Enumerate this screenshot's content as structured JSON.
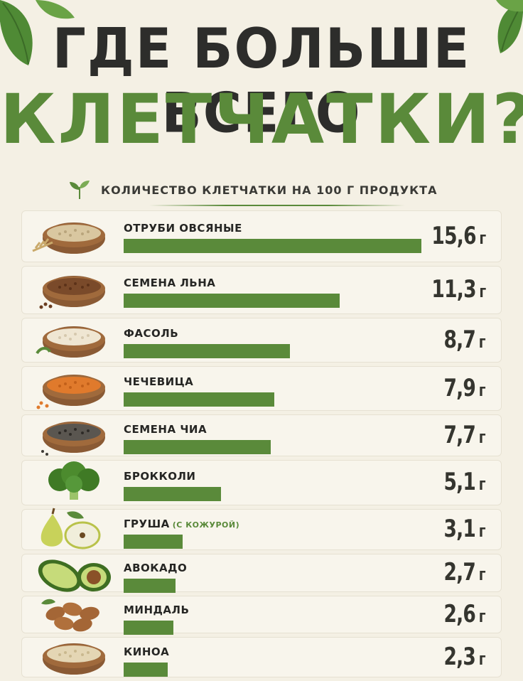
{
  "title_line1": "ГДЕ БОЛЬШЕ ВСЕГО",
  "title_line2": "КЛЕТЧАТКИ?",
  "subtitle": "КОЛИЧЕСТВО КЛЕТЧАТКИ НА 100 Г ПРОДУКТА",
  "colors": {
    "accent": "#5a8a3a",
    "text": "#2d2d2b",
    "background": "#f4f0e4"
  },
  "chart_data": {
    "type": "bar",
    "orientation": "horizontal",
    "unit": "г",
    "xlim": [
      0,
      15.6
    ],
    "items": [
      {
        "label": "ОТРУБИ ОВСЯНЫЕ",
        "note": "",
        "value": 15.6,
        "display": "15,6",
        "icon": "oat-bran-bowl-icon"
      },
      {
        "label": "СЕМЕНА ЛЬНА",
        "note": "",
        "value": 11.3,
        "display": "11,3",
        "icon": "flax-seeds-bowl-icon"
      },
      {
        "label": "ФАСОЛЬ",
        "note": "",
        "value": 8.7,
        "display": "8,7",
        "icon": "beans-bowl-icon"
      },
      {
        "label": "ЧЕЧЕВИЦА",
        "note": "",
        "value": 7.9,
        "display": "7,9",
        "icon": "lentils-bowl-icon"
      },
      {
        "label": "СЕМЕНА ЧИА",
        "note": "",
        "value": 7.7,
        "display": "7,7",
        "icon": "chia-seeds-bowl-icon"
      },
      {
        "label": "БРОККОЛИ",
        "note": "",
        "value": 5.1,
        "display": "5,1",
        "icon": "broccoli-icon"
      },
      {
        "label": "ГРУША",
        "note": "(С КОЖУРОЙ)",
        "value": 3.1,
        "display": "3,1",
        "icon": "pear-icon"
      },
      {
        "label": "АВОКАДО",
        "note": "",
        "value": 2.7,
        "display": "2,7",
        "icon": "avocado-icon"
      },
      {
        "label": "МИНДАЛЬ",
        "note": "",
        "value": 2.6,
        "display": "2,6",
        "icon": "almonds-icon"
      },
      {
        "label": "КИНОА",
        "note": "",
        "value": 2.3,
        "display": "2,3",
        "icon": "quinoa-bowl-icon"
      }
    ]
  }
}
